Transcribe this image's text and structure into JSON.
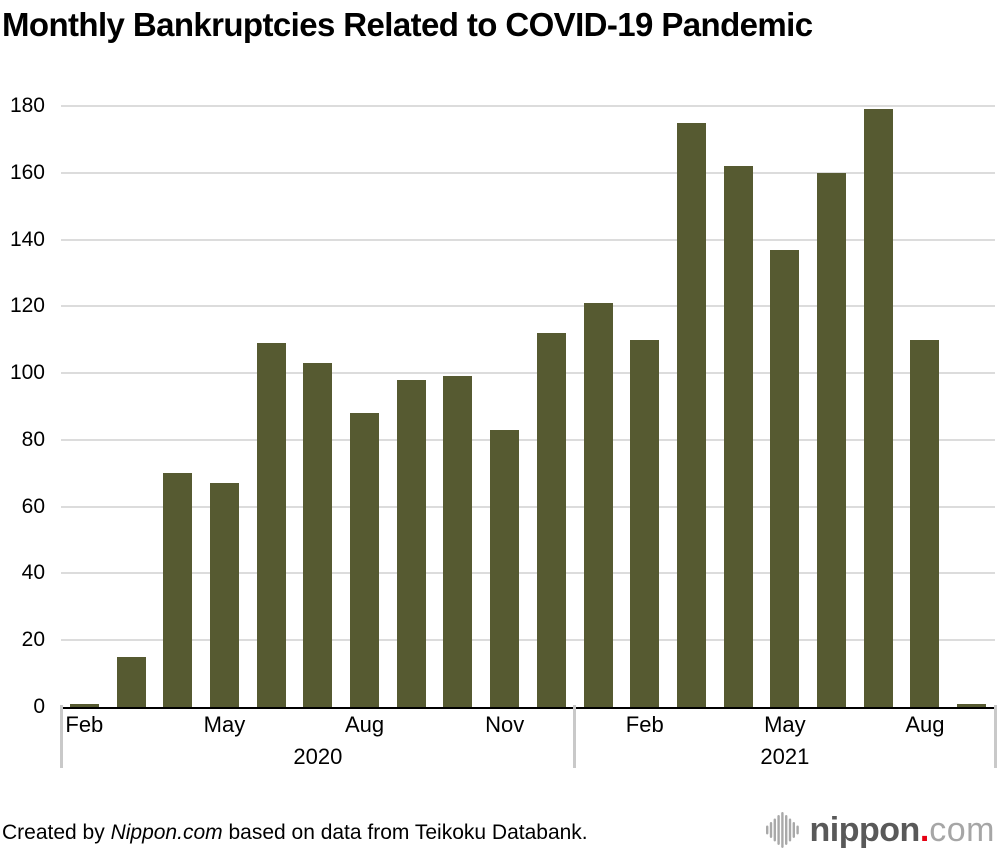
{
  "title": "Monthly Bankruptcies Related to COVID-19 Pandemic",
  "footer": {
    "credit_prefix": "Created by ",
    "credit_source": "Nippon.com",
    "credit_suffix": " based on data from Teikoku Databank.",
    "logo": {
      "name": "nippon",
      "dot": ".",
      "tld": "com",
      "dot_color": "#e60012",
      "icon_color": "#a9a9a9"
    }
  },
  "chart_data": {
    "type": "bar",
    "x": [
      "Feb 2020",
      "Mar 2020",
      "Apr 2020",
      "May 2020",
      "Jun 2020",
      "Jul 2020",
      "Aug 2020",
      "Sep 2020",
      "Oct 2020",
      "Nov 2020",
      "Dec 2020",
      "Jan 2021",
      "Feb 2021",
      "Mar 2021",
      "Apr 2021",
      "May 2021",
      "Jun 2021",
      "Jul 2021",
      "Aug 2021",
      "Sep 2021"
    ],
    "values": [
      1,
      15,
      70,
      67,
      109,
      103,
      88,
      98,
      99,
      83,
      112,
      121,
      110,
      175,
      162,
      137,
      160,
      179,
      110,
      1
    ],
    "title": "Monthly Bankruptcies Related to COVID-19 Pandemic",
    "xlabel": "",
    "ylabel": "",
    "ylim": [
      0,
      180
    ],
    "yticks": [
      0,
      20,
      40,
      60,
      80,
      100,
      120,
      140,
      160,
      180
    ],
    "xticks": [
      {
        "index": 0,
        "label": "Feb"
      },
      {
        "index": 3,
        "label": "May"
      },
      {
        "index": 6,
        "label": "Aug"
      },
      {
        "index": 9,
        "label": "Nov"
      },
      {
        "index": 12,
        "label": "Feb"
      },
      {
        "index": 15,
        "label": "May"
      },
      {
        "index": 18,
        "label": "Aug"
      }
    ],
    "year_sections": [
      {
        "label": "2020",
        "start_index": 0,
        "end_index": 11
      },
      {
        "label": "2021",
        "start_index": 11,
        "end_index": 20
      }
    ],
    "grid": true,
    "legend": false,
    "bar_color": "#565a31",
    "gridline_color": "#dcdcdc",
    "axis_color": "#000000"
  }
}
